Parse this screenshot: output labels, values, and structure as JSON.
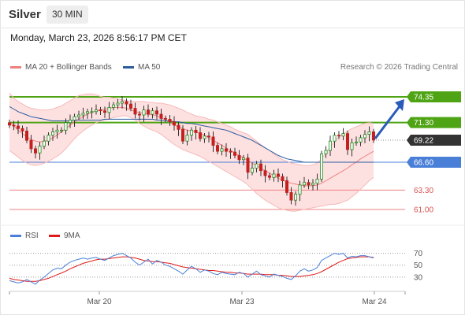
{
  "header": {
    "symbol": "Silver",
    "interval": "30 MIN"
  },
  "datetime": "Monday, March 23, 2026 8:56:17 PM CET",
  "legend": {
    "bollinger": "MA 20 + Bollinger Bands",
    "ma50": "MA 50",
    "credit": "Research © 2026 Trading Central",
    "rsi": "RSI",
    "ma9": "9MA"
  },
  "colors": {
    "bollinger": "#f08080",
    "bollinger_fill": "#fde1e1",
    "ma50": "#2b5c9e",
    "resistance": "#4ea414",
    "support": "#4a7fd8",
    "level_red": "#f08080",
    "candle_up": "#1e8a1e",
    "candle_down": "#c42020",
    "current": "#333333",
    "rsi": "#4a7fd8",
    "ma9": "#e01a1a"
  },
  "chart_data": {
    "type": "candlestick",
    "x_ticks": [
      "Mar 20",
      "Mar 23",
      "Mar 24"
    ],
    "y_range": [
      59.5,
      76.5
    ],
    "price_levels": [
      {
        "value": 74.35,
        "label": "74.35",
        "kind": "resistance"
      },
      {
        "value": 71.3,
        "label": "71.30",
        "kind": "resistance"
      },
      {
        "value": 69.22,
        "label": "69.22",
        "kind": "current"
      },
      {
        "value": 66.6,
        "label": "66.60",
        "kind": "support"
      },
      {
        "value": 63.3,
        "label": "63.30",
        "kind": "level"
      },
      {
        "value": 61.0,
        "label": "61.00",
        "kind": "level"
      }
    ],
    "forecast_target": 74.35,
    "close": [
      71.0,
      70.9,
      70.6,
      70.3,
      69.2,
      68.2,
      67.7,
      68.5,
      69.1,
      69.8,
      70.2,
      70.4,
      70.4,
      71.3,
      71.6,
      72.0,
      72.2,
      72.4,
      72.6,
      72.6,
      72.8,
      72.7,
      72.5,
      73.1,
      73.4,
      73.6,
      73.8,
      73.5,
      73.0,
      72.3,
      72.2,
      72.8,
      72.3,
      72.7,
      72.3,
      71.8,
      71.7,
      71.4,
      71.0,
      70.5,
      69.1,
      69.8,
      70.4,
      70.1,
      69.4,
      69.7,
      69.6,
      68.6,
      67.9,
      68.2,
      67.9,
      67.8,
      67.4,
      66.9,
      67.1,
      65.4,
      65.9,
      66.4,
      65.6,
      65.0,
      64.8,
      65.2,
      64.9,
      64.4,
      63.0,
      62.1,
      62.8,
      63.9,
      64.2,
      63.9,
      64.1,
      64.6,
      67.6,
      68.0,
      69.1,
      69.8,
      69.7,
      70.0,
      68.1,
      68.9,
      69.0,
      69.5,
      69.9,
      70.2,
      69.22
    ],
    "ma20": [
      71.4,
      70.9,
      70.4,
      70.0,
      69.6,
      69.3,
      69.1,
      69.0,
      69.1,
      69.2,
      69.5,
      69.8,
      70.2,
      70.6,
      71.0,
      71.4,
      71.7,
      72.0,
      72.3,
      72.5,
      72.7,
      72.8,
      72.9,
      73.0,
      73.1,
      73.1,
      73.1,
      73.0,
      72.8,
      72.6,
      72.5,
      72.4,
      72.3,
      72.2,
      72.1,
      71.9,
      71.6,
      71.3,
      71.0,
      70.8,
      70.6,
      70.4,
      70.3,
      70.2,
      70.0,
      69.8,
      69.5,
      69.2,
      68.9,
      68.6,
      68.3,
      68.0,
      67.7,
      67.4,
      67.1,
      66.8,
      66.5,
      66.2,
      65.9,
      65.6,
      65.3,
      65.0,
      64.7,
      64.5,
      64.3,
      64.1,
      64.0,
      63.9,
      63.8,
      63.8,
      63.8,
      63.9,
      64.1,
      64.4,
      64.7,
      65.0,
      65.3,
      65.6,
      65.9,
      66.3,
      66.6,
      67.0,
      67.3,
      67.6,
      67.9
    ],
    "bb_upper": [
      74.8,
      74.2,
      73.8,
      73.5,
      73.2,
      73.0,
      72.9,
      72.8,
      72.8,
      72.8,
      72.9,
      73.1,
      73.3,
      73.6,
      73.9,
      74.2,
      74.5,
      74.6,
      74.7,
      74.7,
      74.6,
      74.4,
      74.3,
      74.3,
      74.2,
      74.1,
      74.0,
      73.9,
      73.8,
      73.8,
      73.8,
      73.8,
      73.7,
      73.7,
      73.6,
      73.6,
      73.5,
      73.4,
      73.2,
      73.0,
      72.8,
      72.5,
      72.3,
      72.1,
      72.0,
      71.9,
      71.7,
      71.6,
      71.4,
      71.2,
      71.0,
      70.8,
      70.5,
      70.3,
      70.1,
      69.9,
      69.5,
      69.1,
      68.7,
      68.3,
      68.0,
      67.6,
      67.2,
      66.9,
      66.7,
      66.5,
      66.4,
      66.3,
      66.2,
      66.2,
      66.3,
      66.5,
      67.0,
      67.7,
      68.4,
      69.1,
      69.6,
      70.0,
      70.3,
      70.6,
      70.8,
      71.0,
      71.2,
      71.3,
      71.2
    ],
    "bb_lower": [
      68.0,
      67.6,
      67.2,
      66.8,
      66.5,
      66.3,
      66.2,
      66.3,
      66.5,
      66.7,
      67.0,
      67.3,
      67.7,
      68.2,
      68.8,
      69.4,
      69.9,
      70.3,
      70.7,
      71.0,
      71.3,
      71.5,
      71.6,
      71.7,
      71.9,
      72.0,
      72.1,
      72.1,
      71.9,
      71.6,
      71.2,
      70.9,
      70.6,
      70.4,
      70.2,
      69.9,
      69.5,
      69.1,
      68.7,
      68.4,
      68.1,
      67.9,
      67.7,
      67.5,
      67.3,
      67.0,
      66.7,
      66.4,
      66.1,
      65.8,
      65.5,
      65.2,
      64.9,
      64.6,
      64.3,
      63.9,
      63.4,
      62.9,
      62.5,
      62.1,
      61.8,
      61.5,
      61.2,
      61.0,
      60.9,
      60.8,
      60.8,
      60.9,
      61.0,
      61.1,
      61.2,
      61.3,
      61.4,
      61.5,
      61.6,
      61.6,
      61.7,
      61.9,
      62.1,
      62.5,
      62.9,
      63.4,
      63.9,
      64.4,
      64.8
    ],
    "ma50": [
      73.2,
      72.9,
      72.6,
      72.4,
      72.2,
      72.0,
      71.9,
      71.8,
      71.7,
      71.6,
      71.5,
      71.5,
      71.5,
      71.5,
      71.5,
      71.6,
      71.6,
      71.6,
      71.6,
      71.6,
      71.6,
      71.6,
      71.7,
      71.7,
      71.7,
      71.7,
      71.7,
      71.7,
      71.7,
      71.7,
      71.7,
      71.7,
      71.7,
      71.7,
      71.6,
      71.6,
      71.5,
      71.5,
      71.4,
      71.4,
      71.3,
      71.2,
      71.2,
      71.1,
      71.0,
      70.9,
      70.8,
      70.7,
      70.6,
      70.5,
      70.4,
      70.2,
      70.0,
      69.8,
      69.6,
      69.4,
      69.2,
      68.9,
      68.6,
      68.3,
      68.0,
      67.7,
      67.4,
      67.2,
      67.0,
      66.9,
      66.8,
      66.7,
      66.6,
      66.6,
      66.6,
      66.6,
      66.6,
      66.6,
      66.6,
      66.6,
      66.6,
      66.6,
      66.6,
      66.6,
      66.6,
      66.6,
      66.6,
      66.6,
      66.6
    ],
    "rsi": {
      "levels": [
        70,
        50,
        30
      ],
      "range": [
        10,
        80
      ],
      "values": [
        24,
        22,
        20,
        22,
        26,
        22,
        18,
        25,
        30,
        36,
        42,
        45,
        44,
        50,
        55,
        58,
        60,
        62,
        60,
        62,
        63,
        60,
        58,
        62,
        66,
        68,
        70,
        66,
        62,
        55,
        50,
        55,
        60,
        52,
        58,
        55,
        50,
        48,
        44,
        40,
        35,
        42,
        48,
        44,
        38,
        42,
        40,
        36,
        34,
        38,
        36,
        35,
        34,
        38,
        36,
        30,
        35,
        40,
        34,
        32,
        30,
        35,
        33,
        31,
        28,
        26,
        32,
        40,
        44,
        40,
        42,
        46,
        58,
        62,
        66,
        70,
        68,
        70,
        62,
        65,
        64,
        66,
        66,
        64,
        62
      ],
      "ma9": [
        28,
        26,
        25,
        24,
        23,
        23,
        23,
        24,
        26,
        28,
        31,
        34,
        37,
        40,
        44,
        47,
        50,
        53,
        55,
        57,
        59,
        60,
        60,
        61,
        62,
        63,
        64,
        64,
        63,
        62,
        60,
        58,
        57,
        56,
        56,
        55,
        54,
        53,
        51,
        49,
        47,
        46,
        45,
        44,
        43,
        42,
        41,
        41,
        40,
        39,
        38,
        38,
        37,
        37,
        36,
        35,
        35,
        35,
        35,
        34,
        34,
        34,
        33,
        33,
        32,
        31,
        31,
        31,
        32,
        33,
        34,
        36,
        39,
        43,
        47,
        51,
        55,
        58,
        61,
        62,
        63,
        64,
        64,
        64,
        63
      ]
    }
  }
}
